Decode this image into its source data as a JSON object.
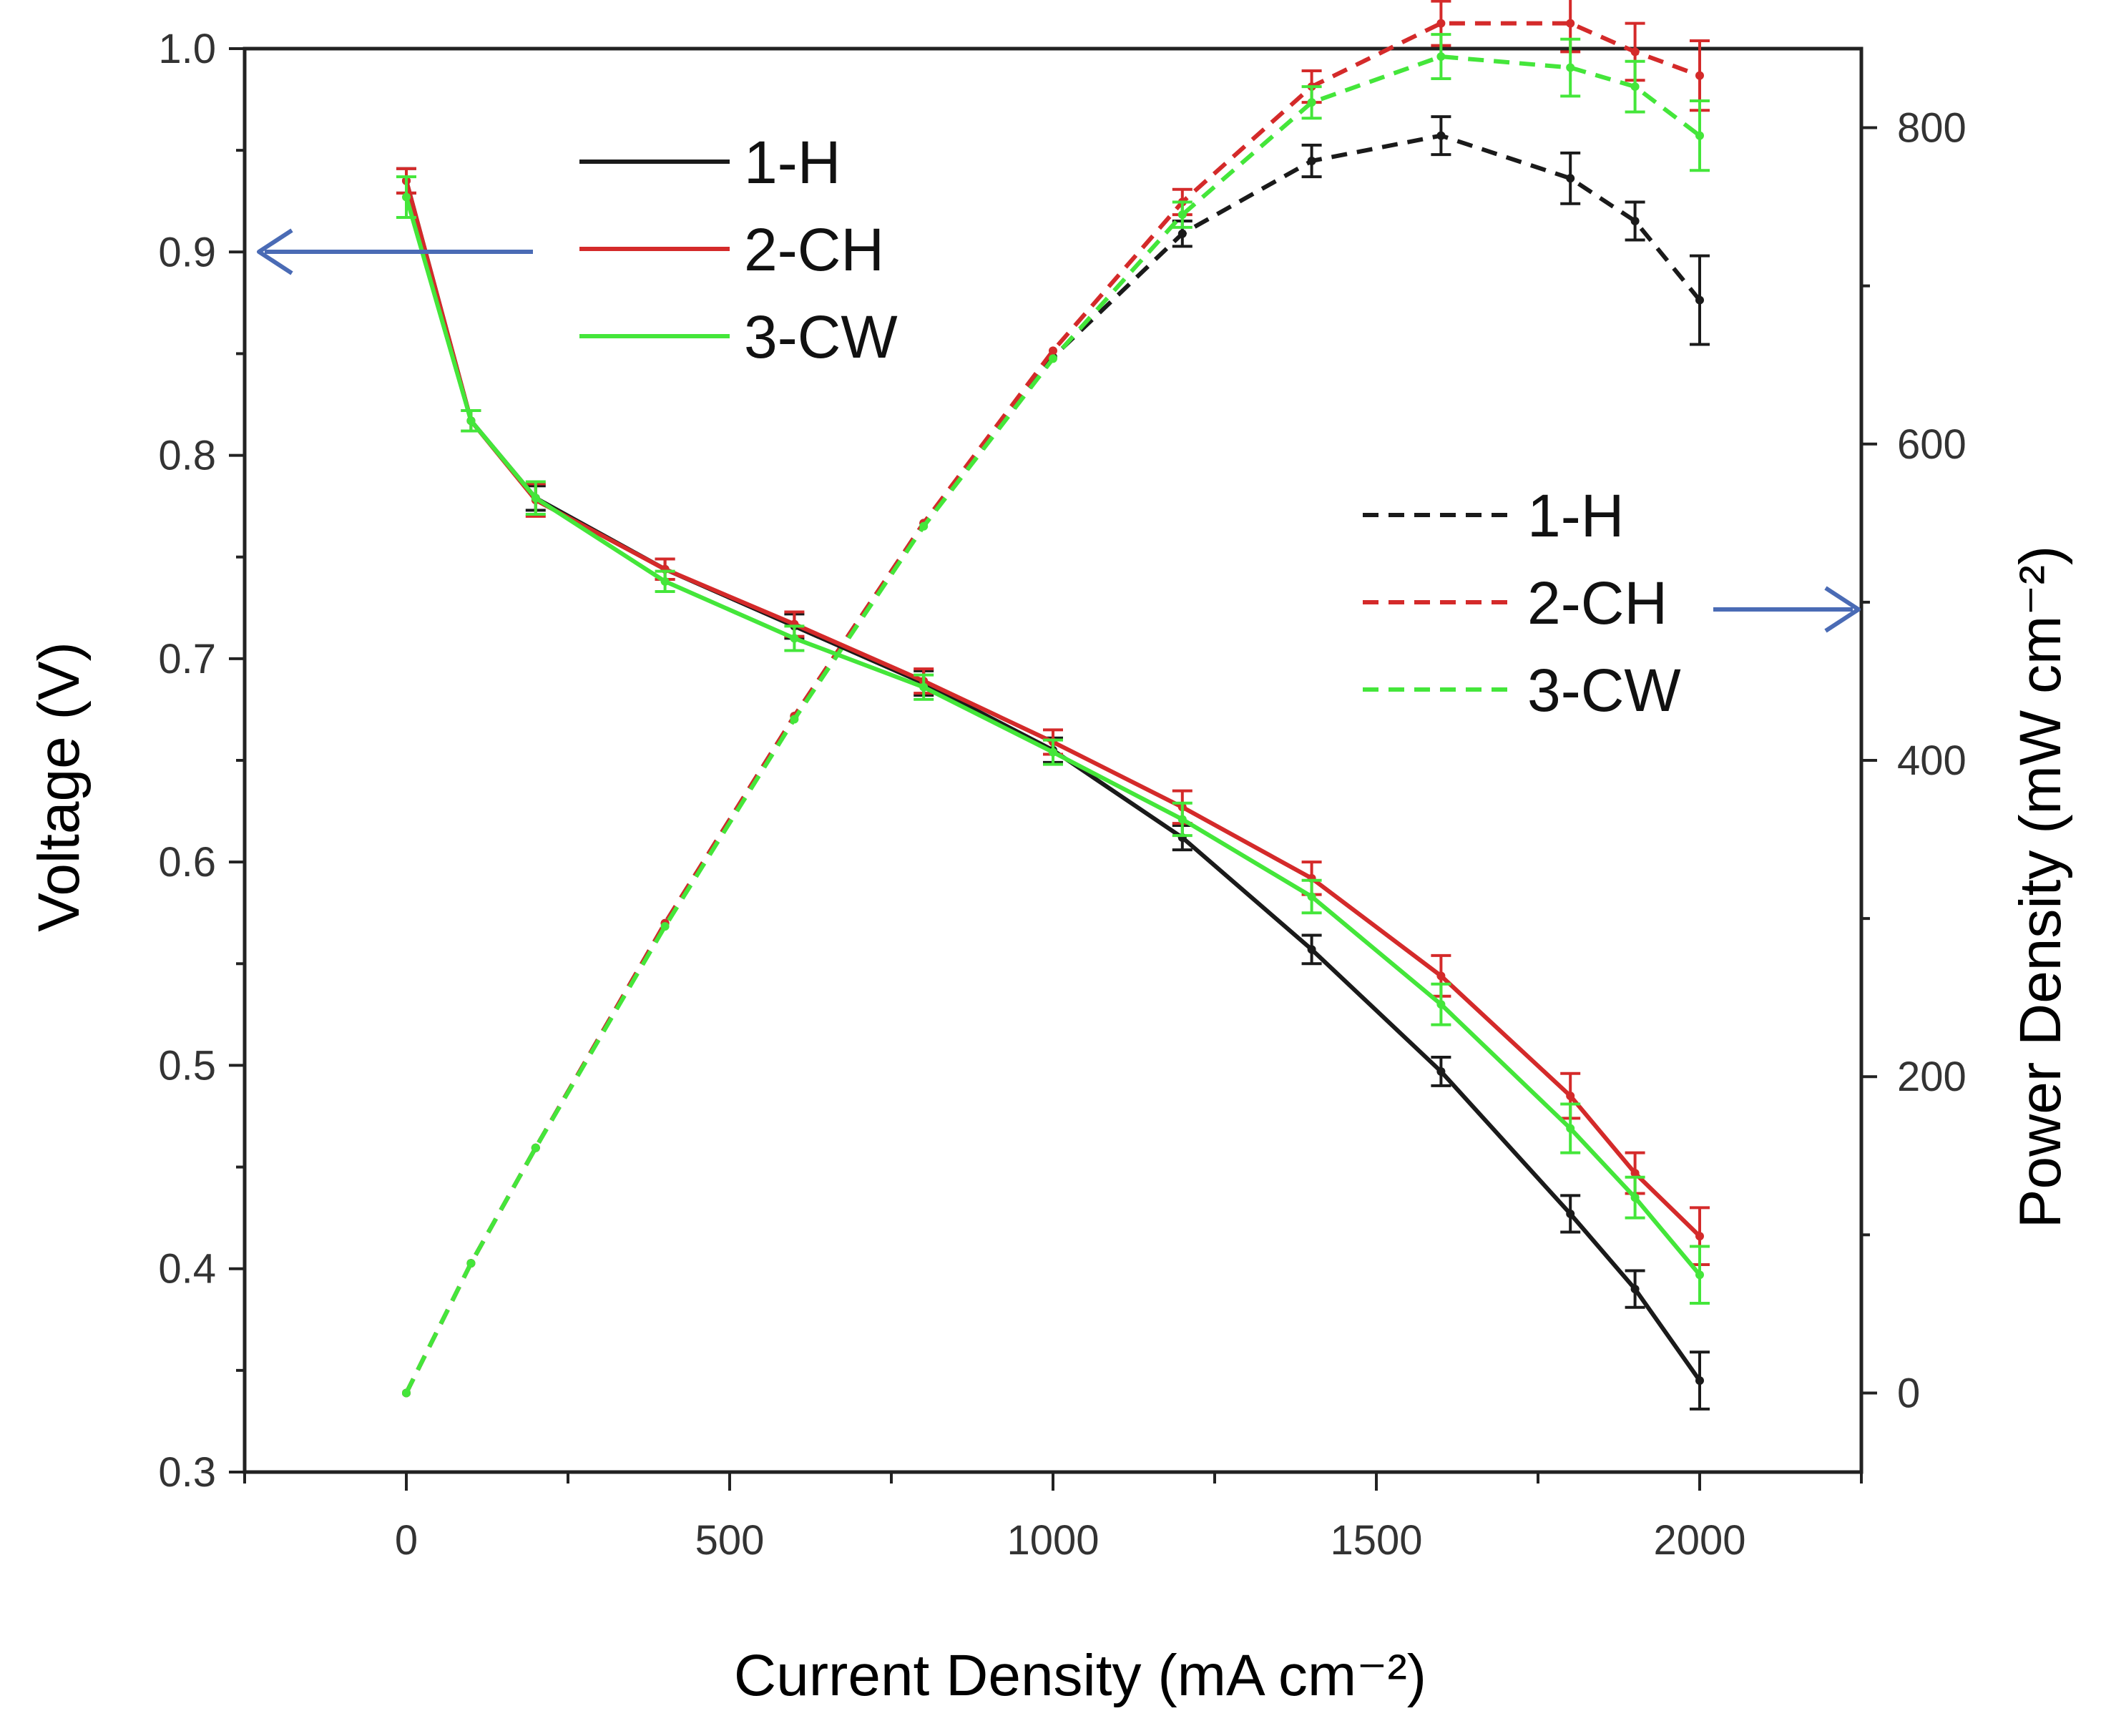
{
  "chart_data": {
    "type": "line",
    "xlabel": "Current Density (mA cm⁻²)",
    "ylabel_left": "Voltage (V)",
    "ylabel_right": "Power Density (mW cm⁻²)",
    "xlim": [
      -250,
      2250
    ],
    "ylim_left": [
      0.3,
      1.0
    ],
    "ylim_right": [
      -50,
      850
    ],
    "x_ticks": [
      0,
      500,
      1000,
      1500,
      2000
    ],
    "x_tick_labels": [
      "0",
      "500",
      "1000",
      "1500",
      "2000"
    ],
    "y_left_ticks": [
      0.3,
      0.4,
      0.5,
      0.6,
      0.7,
      0.8,
      0.9,
      1.0
    ],
    "y_left_tick_labels": [
      "0.3",
      "0.4",
      "0.5",
      "0.6",
      "0.7",
      "0.8",
      "0.9",
      "1.0"
    ],
    "y_right_ticks": [
      0,
      200,
      400,
      600,
      800
    ],
    "y_right_tick_labels": [
      "0",
      "200",
      "400",
      "600",
      "800"
    ],
    "x": [
      0,
      100,
      200,
      400,
      600,
      800,
      1000,
      1200,
      1400,
      1600,
      1800,
      1900,
      2000
    ],
    "series": [
      {
        "name": "1-H",
        "axis": "left",
        "style": "solid",
        "color": "#1a1a1a",
        "values": [
          0.935,
          0.817,
          0.779,
          0.744,
          0.716,
          0.688,
          0.655,
          0.612,
          0.557,
          0.497,
          0.427,
          0.39,
          0.345
        ],
        "errors": [
          0.006,
          0.005,
          0.006,
          0.005,
          0.006,
          0.006,
          0.006,
          0.006,
          0.007,
          0.007,
          0.009,
          0.009,
          0.014
        ]
      },
      {
        "name": "2-CH",
        "axis": "left",
        "style": "solid",
        "color": "#d42a2a",
        "values": [
          0.935,
          0.817,
          0.778,
          0.744,
          0.717,
          0.689,
          0.659,
          0.627,
          0.592,
          0.544,
          0.485,
          0.447,
          0.416
        ],
        "errors": [
          0.006,
          0.005,
          0.008,
          0.005,
          0.006,
          0.006,
          0.006,
          0.008,
          0.008,
          0.01,
          0.011,
          0.01,
          0.014
        ]
      },
      {
        "name": "3-CW",
        "axis": "left",
        "style": "solid",
        "color": "#44e63a",
        "values": [
          0.927,
          0.817,
          0.779,
          0.738,
          0.71,
          0.686,
          0.654,
          0.621,
          0.583,
          0.53,
          0.469,
          0.435,
          0.397
        ],
        "errors": [
          0.01,
          0.005,
          0.008,
          0.005,
          0.006,
          0.006,
          0.006,
          0.008,
          0.008,
          0.01,
          0.012,
          0.01,
          0.014
        ]
      },
      {
        "name": "1-H",
        "axis": "right",
        "style": "dashed",
        "color": "#1a1a1a",
        "values": [
          0,
          82,
          155,
          297,
          428,
          550,
          655,
          733,
          779,
          795,
          768,
          741,
          691
        ],
        "errors": [
          0,
          0,
          0,
          0,
          0,
          0,
          0,
          8,
          10,
          12,
          16,
          12,
          28
        ]
      },
      {
        "name": "2-CH",
        "axis": "right",
        "style": "dashed",
        "color": "#d42a2a",
        "values": [
          0,
          82,
          155,
          297,
          428,
          550,
          659,
          753,
          826,
          866,
          866,
          848,
          833
        ],
        "errors": [
          0,
          0,
          0,
          0,
          0,
          0,
          0,
          8,
          10,
          14,
          18,
          18,
          22
        ]
      },
      {
        "name": "3-CW",
        "axis": "right",
        "style": "dashed",
        "color": "#44e63a",
        "values": [
          0,
          82,
          155,
          295,
          426,
          548,
          654,
          745,
          816,
          845,
          838,
          826,
          795
        ],
        "errors": [
          0,
          0,
          0,
          0,
          0,
          0,
          0,
          8,
          10,
          14,
          18,
          16,
          22
        ]
      }
    ],
    "legends": [
      {
        "position": "top-left",
        "entries": [
          "1-H",
          "2-CH",
          "3-CW"
        ],
        "style": "solid"
      },
      {
        "position": "middle-right",
        "entries": [
          "1-H",
          "2-CH",
          "3-CW"
        ],
        "style": "dashed"
      }
    ],
    "annotations": [
      {
        "type": "arrow",
        "direction": "left",
        "meaning": "solid curves read on left axis",
        "color": "#4a6bb5"
      },
      {
        "type": "arrow",
        "direction": "right",
        "meaning": "dashed curves read on right axis",
        "color": "#4a6bb5"
      }
    ],
    "grid": false
  }
}
